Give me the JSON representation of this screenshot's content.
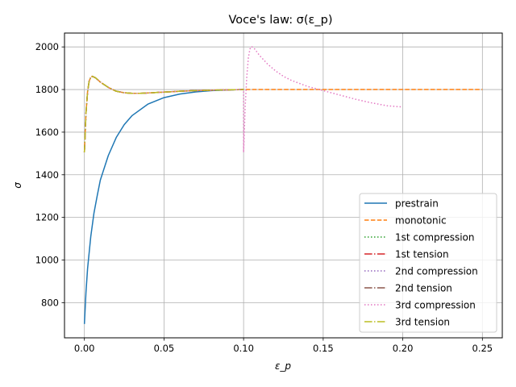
{
  "chart_data": {
    "type": "line",
    "title": "Voce's law: σ(ε_p)",
    "xlabel": "ε_p",
    "ylabel": "σ",
    "xlim": [
      -0.0125,
      0.2625
    ],
    "ylim": [
      635,
      2065
    ],
    "xticks": [
      0.0,
      0.05,
      0.1,
      0.15,
      0.2,
      0.25
    ],
    "xtick_labels": [
      "0.00",
      "0.05",
      "0.10",
      "0.15",
      "0.20",
      "0.25"
    ],
    "yticks": [
      800,
      1000,
      1200,
      1400,
      1600,
      1800,
      2000
    ],
    "ytick_labels": [
      "800",
      "1000",
      "1200",
      "1400",
      "1600",
      "1800",
      "2000"
    ],
    "grid": true,
    "legend_position": "lower right",
    "series": [
      {
        "name": "prestrain",
        "color": "#1f77b4",
        "dash": "solid",
        "x": [
          0,
          0.001,
          0.002,
          0.004,
          0.006,
          0.008,
          0.01,
          0.015,
          0.02,
          0.025,
          0.03,
          0.04,
          0.05,
          0.06,
          0.07,
          0.08,
          0.09,
          0.1
        ],
        "y": [
          700,
          850,
          960,
          1110,
          1220,
          1300,
          1375,
          1490,
          1575,
          1635,
          1678,
          1732,
          1762,
          1779,
          1789,
          1795,
          1798,
          1800
        ]
      },
      {
        "name": "monotonic",
        "color": "#ff7f0e",
        "dash": "dashed",
        "x": [
          0,
          0.001,
          0.002,
          0.003,
          0.004,
          0.005,
          0.007,
          0.01,
          0.015,
          0.02,
          0.025,
          0.03,
          0.035,
          0.04,
          0.05,
          0.06,
          0.07,
          0.08,
          0.1,
          0.15,
          0.2,
          0.25
        ],
        "y": [
          1505,
          1690,
          1790,
          1840,
          1858,
          1862,
          1855,
          1835,
          1810,
          1792,
          1785,
          1782,
          1782,
          1784,
          1788,
          1792,
          1795,
          1797,
          1800,
          1800,
          1800,
          1800
        ]
      },
      {
        "name": "1st compression",
        "color": "#2ca02c",
        "dash": "dotted",
        "x": [
          0,
          0.001,
          0.002,
          0.003,
          0.004,
          0.005,
          0.007,
          0.01,
          0.015,
          0.02,
          0.025,
          0.03,
          0.035,
          0.04,
          0.05,
          0.06,
          0.07,
          0.08,
          0.1
        ],
        "y": [
          1505,
          1690,
          1790,
          1840,
          1858,
          1862,
          1855,
          1835,
          1810,
          1792,
          1785,
          1782,
          1782,
          1784,
          1788,
          1792,
          1795,
          1797,
          1800
        ]
      },
      {
        "name": "1st tension",
        "color": "#d62728",
        "dash": "dashdot",
        "x": [
          0,
          0.001,
          0.002,
          0.003,
          0.004,
          0.005,
          0.007,
          0.01,
          0.015,
          0.02,
          0.025,
          0.03,
          0.035,
          0.04,
          0.05,
          0.06,
          0.07,
          0.08,
          0.1
        ],
        "y": [
          1505,
          1690,
          1790,
          1840,
          1858,
          1862,
          1855,
          1835,
          1810,
          1792,
          1785,
          1782,
          1782,
          1784,
          1788,
          1792,
          1795,
          1797,
          1800
        ]
      },
      {
        "name": "2nd compression",
        "color": "#9467bd",
        "dash": "dotted",
        "x": [
          0,
          0.001,
          0.002,
          0.003,
          0.004,
          0.005,
          0.007,
          0.01,
          0.015,
          0.02,
          0.025,
          0.03,
          0.035,
          0.04,
          0.05,
          0.06,
          0.07,
          0.08,
          0.1
        ],
        "y": [
          1505,
          1690,
          1790,
          1840,
          1858,
          1862,
          1855,
          1835,
          1810,
          1792,
          1785,
          1782,
          1782,
          1784,
          1788,
          1792,
          1795,
          1797,
          1800
        ]
      },
      {
        "name": "2nd tension",
        "color": "#8c564b",
        "dash": "dashdot",
        "x": [
          0,
          0.001,
          0.002,
          0.003,
          0.004,
          0.005,
          0.007,
          0.01,
          0.015,
          0.02,
          0.025,
          0.03,
          0.035,
          0.04,
          0.05,
          0.06,
          0.07,
          0.08,
          0.1
        ],
        "y": [
          1505,
          1690,
          1790,
          1840,
          1858,
          1862,
          1855,
          1835,
          1810,
          1792,
          1785,
          1782,
          1782,
          1784,
          1788,
          1792,
          1795,
          1797,
          1800
        ]
      },
      {
        "name": "3rd compression",
        "color": "#e377c2",
        "dash": "dotted",
        "x": [
          0,
          0.001,
          0.002,
          0.003,
          0.004,
          0.005,
          0.007,
          0.01,
          0.015,
          0.02,
          0.025,
          0.03,
          0.035,
          0.04,
          0.05,
          0.06,
          0.07,
          0.08,
          0.1,
          0.1,
          0.101,
          0.102,
          0.103,
          0.104,
          0.105,
          0.107,
          0.11,
          0.115,
          0.12,
          0.125,
          0.13,
          0.14,
          0.15,
          0.16,
          0.17,
          0.18,
          0.19,
          0.2
        ],
        "y": [
          1505,
          1690,
          1790,
          1840,
          1858,
          1862,
          1855,
          1835,
          1810,
          1792,
          1785,
          1782,
          1782,
          1784,
          1788,
          1792,
          1795,
          1797,
          1800,
          1505,
          1720,
          1860,
          1950,
          1990,
          2002,
          1990,
          1960,
          1920,
          1888,
          1862,
          1843,
          1815,
          1795,
          1775,
          1755,
          1738,
          1724,
          1718
        ]
      },
      {
        "name": "3rd tension",
        "color": "#bcbd22",
        "dash": "dashdot",
        "x": [
          0,
          0.001,
          0.002,
          0.003,
          0.004,
          0.005,
          0.007,
          0.01,
          0.015,
          0.02,
          0.025,
          0.03,
          0.035,
          0.04,
          0.05,
          0.06,
          0.07,
          0.08,
          0.1
        ],
        "y": [
          1505,
          1690,
          1790,
          1840,
          1858,
          1862,
          1855,
          1835,
          1810,
          1792,
          1785,
          1782,
          1782,
          1784,
          1788,
          1792,
          1795,
          1797,
          1800
        ]
      }
    ]
  }
}
